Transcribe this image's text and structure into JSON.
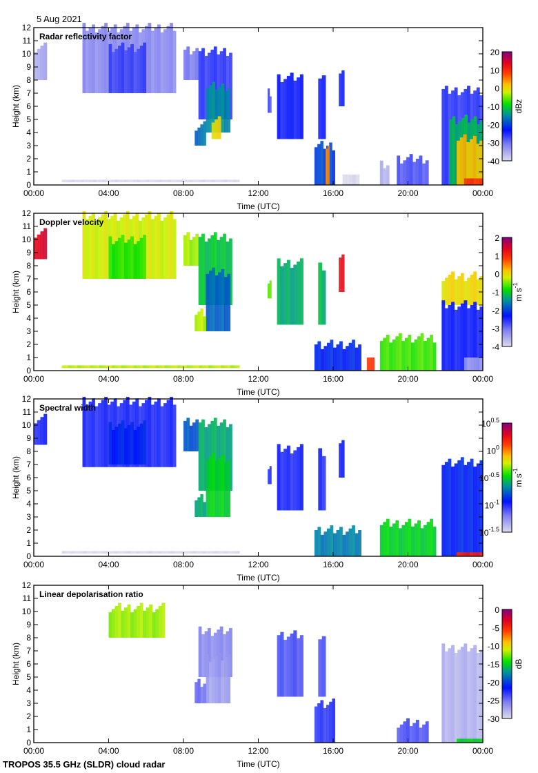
{
  "header": {
    "date": "5 Aug 2021"
  },
  "footer": {
    "instrument": "TROPOS 35.5 GHz (SLDR) cloud radar"
  },
  "chart_data": [
    {
      "type": "heatmap",
      "title": "Radar reflectivity factor",
      "xlabel": "Time (UTC)",
      "ylabel": "Height (km)",
      "xlim": [
        0,
        24
      ],
      "ylim": [
        0,
        12
      ],
      "xticks": [
        "00:00",
        "04:00",
        "08:00",
        "12:00",
        "16:00",
        "20:00",
        "00:00"
      ],
      "yticks": [
        "0",
        "1",
        "2",
        "3",
        "4",
        "5",
        "6",
        "7",
        "8",
        "9",
        "10",
        "11",
        "12"
      ],
      "colorbar": {
        "label": "dBz",
        "range": [
          -40,
          20
        ],
        "ticks": [
          "20",
          "10",
          "0",
          "-10",
          "-20",
          "-30",
          "-40"
        ]
      },
      "echoes": [
        [
          0,
          0.7,
          8,
          10.5,
          -35
        ],
        [
          2.6,
          7.6,
          7,
          12,
          -32
        ],
        [
          4,
          6,
          7,
          10.5,
          -27
        ],
        [
          8,
          8.8,
          8,
          10.2,
          -31
        ],
        [
          8.8,
          10.6,
          5,
          10.2,
          -26
        ],
        [
          9.2,
          10.5,
          4,
          7.5,
          -15
        ],
        [
          9.5,
          10,
          3.5,
          5,
          0
        ],
        [
          8.6,
          9.2,
          3,
          4.5,
          -17
        ],
        [
          12.5,
          12.7,
          5.5,
          7,
          -28
        ],
        [
          13,
          14.4,
          3.5,
          8.2,
          -24
        ],
        [
          15.2,
          15.6,
          3.5,
          8,
          -25
        ],
        [
          16.3,
          16.6,
          6,
          8.5,
          -25
        ],
        [
          15,
          16.1,
          0,
          3,
          -20
        ],
        [
          15.6,
          15.8,
          0,
          3,
          5
        ],
        [
          16.5,
          17.4,
          0,
          0.8,
          -40
        ],
        [
          18.5,
          19,
          0,
          1.5,
          -36
        ],
        [
          19.4,
          21.1,
          0,
          2,
          -28
        ],
        [
          21.8,
          24,
          0,
          7.2,
          -26
        ],
        [
          22.2,
          24,
          0,
          5,
          -12
        ],
        [
          22.6,
          24,
          0,
          3.5,
          2
        ],
        [
          23,
          24,
          0,
          0.5,
          10
        ],
        [
          1.5,
          11,
          0.2,
          0.4,
          -40
        ]
      ]
    },
    {
      "type": "heatmap",
      "title": "Doppler velocity",
      "xlabel": "Time (UTC)",
      "ylabel": "Height (km)",
      "xlim": [
        0,
        24
      ],
      "ylim": [
        0,
        12
      ],
      "xticks": [
        "00:00",
        "04:00",
        "08:00",
        "12:00",
        "16:00",
        "20:00",
        "00:00"
      ],
      "yticks": [
        "0",
        "1",
        "2",
        "3",
        "4",
        "5",
        "6",
        "7",
        "8",
        "9",
        "10",
        "11",
        "12"
      ],
      "colorbar": {
        "label": "m s^-1",
        "range": [
          -4,
          2
        ],
        "ticks": [
          "2",
          "1",
          "0",
          "-1",
          "-2",
          "-3",
          "-4"
        ]
      },
      "echoes": [
        [
          0,
          0.7,
          8.5,
          10.5,
          1.4
        ],
        [
          2.6,
          7.6,
          7,
          11.8,
          -0.2
        ],
        [
          4,
          6,
          7,
          10,
          -0.8
        ],
        [
          8,
          8.8,
          8,
          10.2,
          -0.4
        ],
        [
          8.8,
          10.6,
          5,
          10.2,
          -1.1
        ],
        [
          9.2,
          10.5,
          3,
          7.5,
          -1.8
        ],
        [
          8.6,
          9.2,
          3,
          4.5,
          -0.3
        ],
        [
          12.5,
          12.7,
          5.5,
          7,
          -0.5
        ],
        [
          13,
          14.4,
          3.5,
          8.2,
          -1.3
        ],
        [
          15.2,
          15.6,
          3.5,
          8,
          -1.2
        ],
        [
          16.3,
          16.6,
          6,
          8.5,
          1.2
        ],
        [
          15,
          17.5,
          0,
          2,
          -2.2
        ],
        [
          17.8,
          18.2,
          0,
          1,
          0.9
        ],
        [
          18.5,
          21.5,
          0,
          2.5,
          -0.7
        ],
        [
          21.8,
          24,
          5,
          7.2,
          0
        ],
        [
          21.8,
          24,
          0,
          5,
          -2.4
        ],
        [
          23,
          24,
          0,
          1,
          -3.4
        ],
        [
          1.5,
          11,
          0.2,
          0.4,
          -0.3
        ]
      ]
    },
    {
      "type": "heatmap",
      "title": "Spectral width",
      "xlabel": "Time (UTC)",
      "ylabel": "Height (km)",
      "xlim": [
        0,
        24
      ],
      "ylim": [
        0,
        12
      ],
      "xticks": [
        "00:00",
        "04:00",
        "08:00",
        "12:00",
        "16:00",
        "20:00",
        "00:00"
      ],
      "yticks": [
        "0",
        "1",
        "2",
        "3",
        "4",
        "5",
        "6",
        "7",
        "8",
        "9",
        "10",
        "11",
        "12"
      ],
      "colorbar": {
        "label": "m s^-1",
        "range": [
          -1.5,
          0.5
        ],
        "ticks": [
          "10^0.5",
          "10^0",
          "10^-0.5",
          "10^-1",
          "10^-1.5"
        ]
      },
      "echoes": [
        [
          0,
          0.7,
          8.5,
          10.5,
          -1
        ],
        [
          2.6,
          7.6,
          6.8,
          11.8,
          -1
        ],
        [
          4,
          6,
          7,
          10,
          -0.9
        ],
        [
          8,
          8.8,
          8,
          10.2,
          -0.8
        ],
        [
          8.8,
          10.6,
          5,
          10.2,
          -0.6
        ],
        [
          9.2,
          10.5,
          3,
          7.5,
          -0.5
        ],
        [
          8.6,
          9.2,
          3,
          4.5,
          -0.6
        ],
        [
          12.5,
          12.7,
          5.5,
          7,
          -1
        ],
        [
          13,
          14.4,
          3.5,
          8.2,
          -1
        ],
        [
          15.2,
          15.6,
          3.5,
          8,
          -1
        ],
        [
          16.3,
          16.6,
          6,
          8.5,
          -1
        ],
        [
          15,
          17.5,
          0,
          2,
          -0.7
        ],
        [
          18.5,
          21.5,
          0,
          2.5,
          -0.5
        ],
        [
          21.8,
          24,
          0,
          7.2,
          -0.9
        ],
        [
          22.6,
          24,
          0,
          0.3,
          0.2
        ],
        [
          1.5,
          11,
          0.2,
          0.4,
          -1.5
        ]
      ]
    },
    {
      "type": "heatmap",
      "title": "Linear depolarisation ratio",
      "xlabel": "Time (UTC)",
      "ylabel": "Height (km)",
      "xlim": [
        0,
        24
      ],
      "ylim": [
        0,
        12
      ],
      "xticks": [
        "00:00",
        "04:00",
        "08:00",
        "12:00",
        "16:00",
        "20:00",
        "00:00"
      ],
      "yticks": [
        "0",
        "1",
        "2",
        "3",
        "4",
        "5",
        "6",
        "7",
        "8",
        "9",
        "10",
        "11",
        "12"
      ],
      "colorbar": {
        "label": "dB",
        "range": [
          -30,
          0
        ],
        "ticks": [
          "0",
          "-5",
          "-10",
          "-15",
          "-20",
          "-25",
          "-30"
        ]
      },
      "echoes": [
        [
          4,
          7,
          8,
          10.3,
          -12
        ],
        [
          8.8,
          10.6,
          5,
          8.5,
          -26
        ],
        [
          9.2,
          10.5,
          3,
          6.5,
          -27
        ],
        [
          8.6,
          9.2,
          3,
          4.5,
          -25
        ],
        [
          13,
          14.4,
          3.5,
          8.2,
          -24
        ],
        [
          15.2,
          15.6,
          3.5,
          8,
          -24
        ],
        [
          15,
          16.1,
          0,
          3,
          -23
        ],
        [
          19.4,
          21.1,
          0,
          1.5,
          -24
        ],
        [
          21.8,
          24,
          0,
          7.2,
          -28
        ],
        [
          22.6,
          24,
          0,
          0.3,
          -15
        ]
      ]
    }
  ]
}
